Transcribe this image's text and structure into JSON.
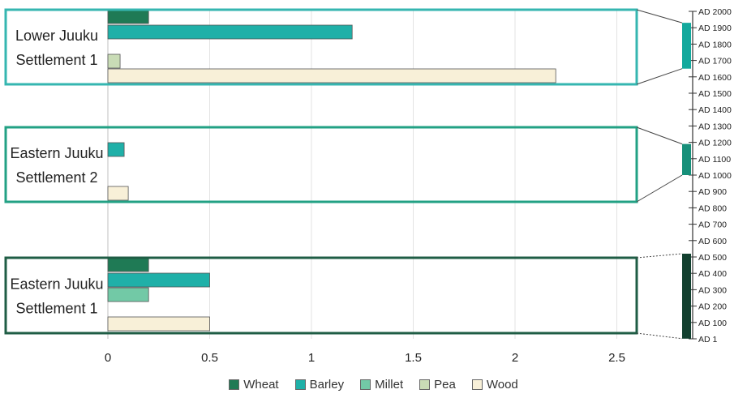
{
  "chart_data": {
    "type": "bar",
    "orientation": "horizontal",
    "xlim": [
      0,
      2.6
    ],
    "x_ticks": [
      "0",
      "0.5",
      "1",
      "1.5",
      "2",
      "2.5"
    ],
    "x_tick_values": [
      0,
      0.5,
      1,
      1.5,
      2,
      2.5
    ],
    "grid": "vertical",
    "legend_placement": "bottom",
    "categories": [
      {
        "line1": "Lower Juuku",
        "line2": "Settlement 1",
        "box_color": "#35b6b0",
        "timeline_color": "#13a99d",
        "time_range": [
          "AD 1650",
          "AD 1930"
        ]
      },
      {
        "line1": "Eastern Juuku",
        "line2": "Settlement 2",
        "box_color": "#22a184",
        "timeline_color": "#17907a",
        "time_range": [
          "AD 1000",
          "AD 1190"
        ]
      },
      {
        "line1": "Eastern Juuku",
        "line2": "Settlement 1",
        "box_color": "#1f5d45",
        "timeline_color": "#12402f",
        "time_range": [
          "AD 1",
          "AD 520"
        ]
      }
    ],
    "series": [
      {
        "name": "Wheat",
        "color": "#1f7a55",
        "values": [
          0.2,
          0,
          0.2
        ]
      },
      {
        "name": "Barley",
        "color": "#1fb0a8",
        "values": [
          1.2,
          0.08,
          0.5
        ]
      },
      {
        "name": "Millet",
        "color": "#72c9a6",
        "values": [
          0,
          0,
          0.2
        ]
      },
      {
        "name": "Pea",
        "color": "#c9dcb6",
        "values": [
          0.06,
          0,
          0
        ]
      },
      {
        "name": "Wood",
        "color": "#f8f0d8",
        "values": [
          2.2,
          0.1,
          0.5
        ]
      }
    ],
    "timeline": {
      "labels": [
        "AD 2000",
        "AD 1900",
        "AD 1800",
        "AD 1700",
        "AD 1600",
        "AD 1500",
        "AD 1400",
        "AD 1300",
        "AD 1200",
        "AD 1100",
        "AD 1000",
        "AD 900",
        "AD 800",
        "AD 700",
        "AD 600",
        "AD 500",
        "AD 400",
        "AD 300",
        "AD 200",
        "AD 100",
        "AD 1"
      ]
    }
  }
}
